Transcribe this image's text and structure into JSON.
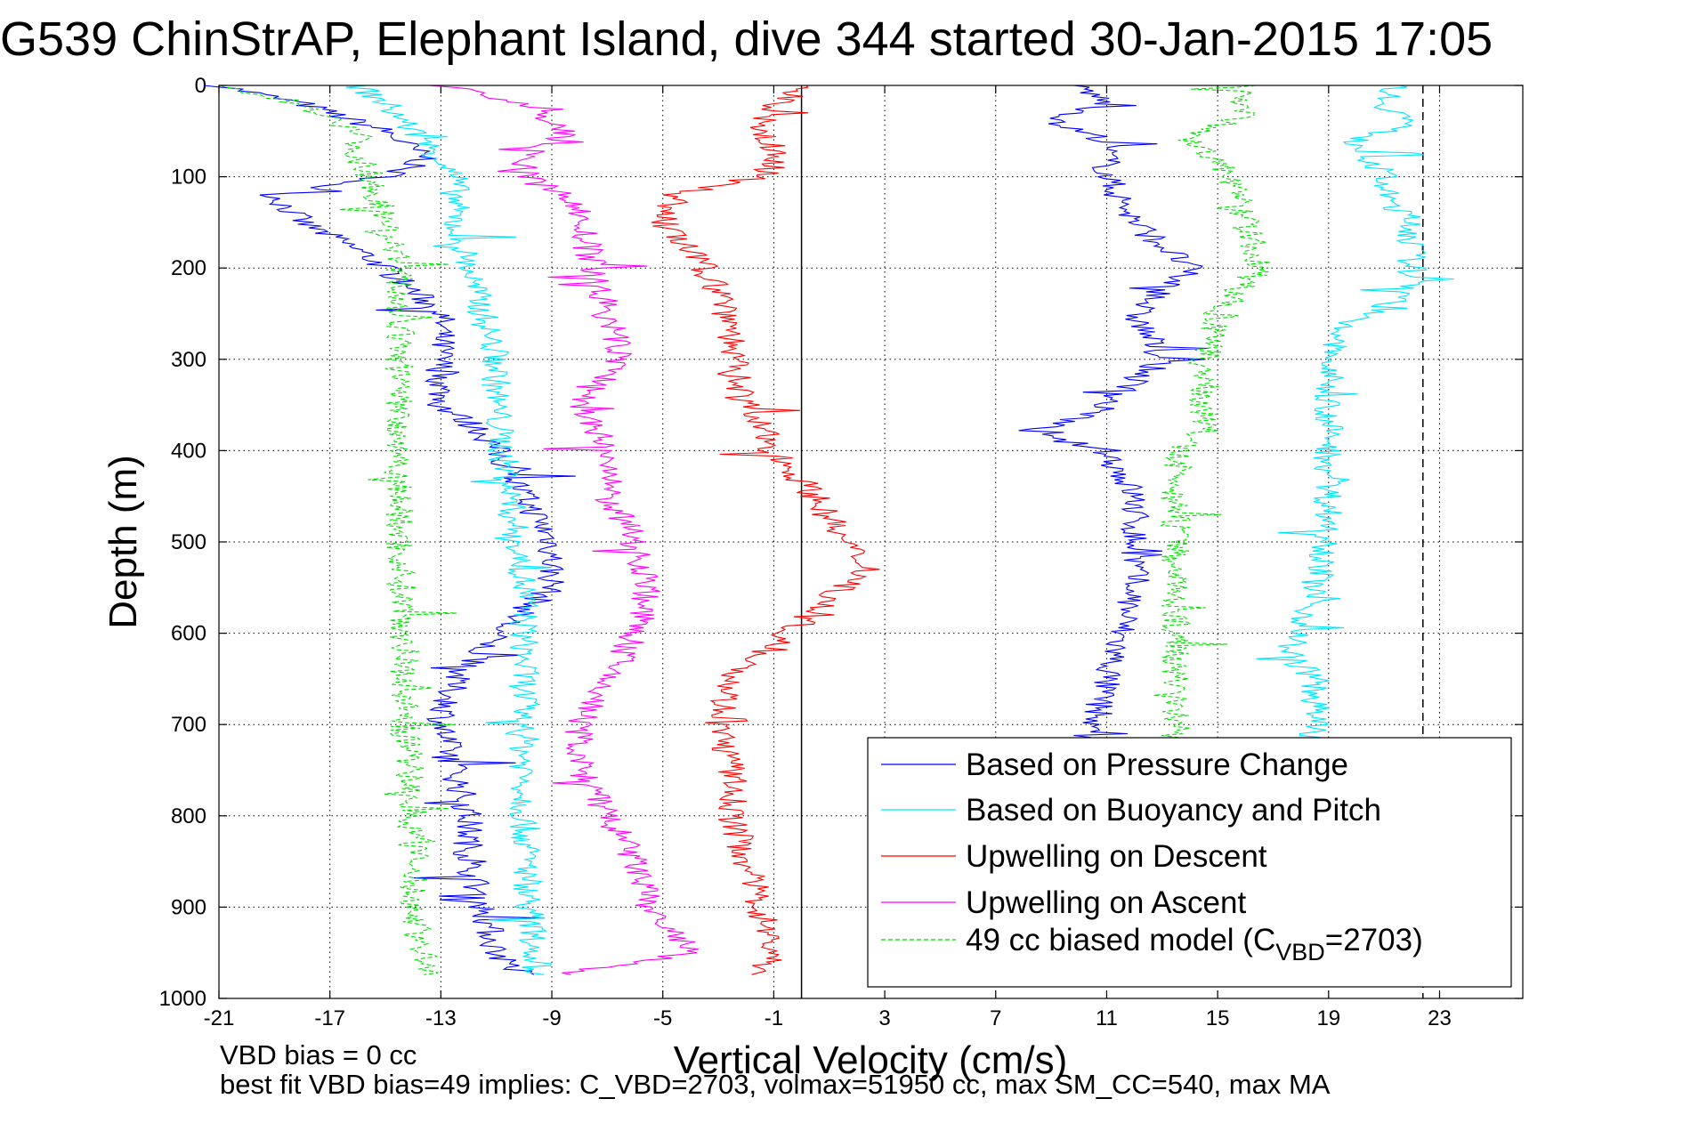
{
  "chart_data": {
    "type": "line",
    "title": "G539 ChinStrAP, Elephant Island, dive 344 started 30-Jan-2015 17:05",
    "xlabel": "Vertical Velocity (cm/s)",
    "ylabel": "Depth (m)",
    "xlim": [
      -21,
      26
    ],
    "ylim": [
      1000,
      0
    ],
    "y_inverted": true,
    "grid": true,
    "x_ticks": [
      -21,
      -17,
      -13,
      -9,
      -5,
      -1,
      3,
      7,
      11,
      15,
      19,
      23
    ],
    "y_ticks": [
      0,
      100,
      200,
      300,
      400,
      500,
      600,
      700,
      800,
      900,
      1000
    ],
    "x_tick_labels": [
      "-21",
      "-17",
      "-13",
      "-9",
      "-5",
      "-1",
      "3",
      "7",
      "11",
      "15",
      "19",
      "23"
    ],
    "y_tick_labels": [
      "0",
      "100",
      "200",
      "300",
      "400",
      "500",
      "600",
      "700",
      "800",
      "900",
      "1000"
    ],
    "legend_position": "bottom-right",
    "reference_lines": [
      {
        "axis": "x",
        "value": 0,
        "style": "solid",
        "color": "#000000"
      },
      {
        "axis": "x",
        "value": 22.4,
        "style": "dashed",
        "color": "#000000"
      }
    ],
    "series": [
      {
        "name": "Based on Pressure Change",
        "color": "#0000ff",
        "style": "solid",
        "segments": [
          {
            "depth": [
              0,
              20,
              50,
              80,
              100,
              120,
              150,
              180,
              200,
              250,
              300,
              350,
              380,
              400,
              450,
              500,
              550,
              600,
              650,
              700,
              750,
              800,
              850,
              900,
              950,
              975
            ],
            "velocity": [
              -21,
              -18,
              -15,
              -13.5,
              -15,
              -19,
              -18,
              -16,
              -15,
              -13,
              -13,
              -13,
              -11.5,
              -11,
              -10,
              -9,
              -9,
              -11,
              -12.5,
              -13,
              -12.5,
              -12,
              -12,
              -11.5,
              -11,
              -10
            ]
          },
          {
            "depth": [
              720,
              700,
              650,
              600,
              550,
              500,
              450,
              400,
              380,
              360,
              300,
              250,
              200,
              150,
              100,
              60,
              40,
              20,
              0
            ],
            "velocity": [
              10,
              10.5,
              11,
              11.5,
              12,
              12,
              12,
              11,
              8,
              10.5,
              13,
              12,
              14,
              12,
              11,
              11,
              9,
              11,
              10
            ]
          }
        ]
      },
      {
        "name": "Based on Buoyancy and Pitch",
        "color": "#00e5ff",
        "style": "solid",
        "segments": [
          {
            "depth": [
              0,
              20,
              50,
              80,
              100,
              120,
              150,
              200,
              250,
              300,
              350,
              400,
              450,
              500,
              550,
              600,
              700,
              800,
              900,
              975
            ],
            "velocity": [
              -16,
              -15,
              -14,
              -13,
              -12.5,
              -12.5,
              -12.5,
              -12,
              -11.5,
              -11,
              -11,
              -10.8,
              -10.5,
              -10.3,
              -10,
              -10,
              -10,
              -10,
              -9.8,
              -9.5
            ]
          },
          {
            "depth": [
              715,
              650,
              620,
              600,
              550,
              500,
              450,
              400,
              380,
              350,
              300,
              260,
              230,
              200,
              150,
              120,
              100,
              60,
              40,
              20,
              0
            ],
            "velocity": [
              18.5,
              18.5,
              17.5,
              18,
              18.5,
              19,
              19,
              19,
              19,
              19,
              19,
              19.5,
              22,
              22,
              22,
              21,
              21,
              20,
              22,
              21,
              21.5
            ]
          }
        ]
      },
      {
        "name": "Upwelling on Descent",
        "color": "#ff0000",
        "style": "solid",
        "segments": [
          {
            "depth": [
              0,
              20,
              50,
              80,
              100,
              120,
              150,
              200,
              250,
              300,
              350,
              400,
              450,
              500,
              530,
              550,
              600,
              650,
              700,
              750,
              800,
              850,
              900,
              950,
              975
            ],
            "velocity": [
              0,
              -1,
              -1.5,
              -0.8,
              -1.5,
              -4.5,
              -5,
              -3.5,
              -2.5,
              -2.5,
              -2,
              -1,
              0.5,
              1.5,
              2.5,
              1.5,
              -0.5,
              -2.5,
              -3,
              -2.5,
              -2.5,
              -2,
              -1.5,
              -1,
              -1.5
            ]
          }
        ]
      },
      {
        "name": "Upwelling on Ascent",
        "color": "#ff00ff",
        "style": "solid",
        "segments": [
          {
            "depth": [
              0,
              20,
              50,
              80,
              100,
              130,
              150,
              200,
              250,
              300,
              350,
              400,
              450,
              500,
              550,
              600,
              650,
              700,
              750,
              800,
              850,
              900,
              950,
              975
            ],
            "velocity": [
              -13,
              -10,
              -8.5,
              -10,
              -10,
              -8,
              -8,
              -7.5,
              -7,
              -6.5,
              -8,
              -7,
              -7,
              -6,
              -5.5,
              -6,
              -7,
              -8,
              -8,
              -7,
              -6,
              -5.5,
              -4,
              -9
            ]
          }
        ]
      },
      {
        "name": "49 cc biased model (C",
        "name_subscript": "VBD",
        "name_suffix": "=2703)",
        "color": "#00dd00",
        "style": "dashed",
        "segments": [
          {
            "depth": [
              0,
              20,
              50,
              80,
              100,
              150,
              200,
              250,
              300,
              350,
              400,
              450,
              500,
              600,
              700,
              800,
              900,
              975
            ],
            "velocity": [
              -21,
              -18,
              -16,
              -16,
              -15.5,
              -15,
              -14.5,
              -14.5,
              -14.5,
              -14.5,
              -14.5,
              -14.5,
              -14.5,
              -14.3,
              -14.3,
              -14,
              -14,
              -13.5
            ]
          },
          {
            "depth": [
              715,
              650,
              600,
              550,
              500,
              450,
              420,
              400,
              380,
              350,
              300,
              250,
              200,
              150,
              100,
              60,
              30,
              0
            ],
            "velocity": [
              13.5,
              13.5,
              13.5,
              13.5,
              13.5,
              13.5,
              13.5,
              13.5,
              14.5,
              14.5,
              14.5,
              15,
              16.5,
              16,
              15.5,
              14,
              16,
              16
            ]
          }
        ]
      }
    ]
  },
  "footer": {
    "line1": "VBD bias = 0 cc",
    "line2": "best fit VBD bias=49 implies: C_VBD=2703, volmax=51950 cc, max SM_CC=540, max MA"
  }
}
